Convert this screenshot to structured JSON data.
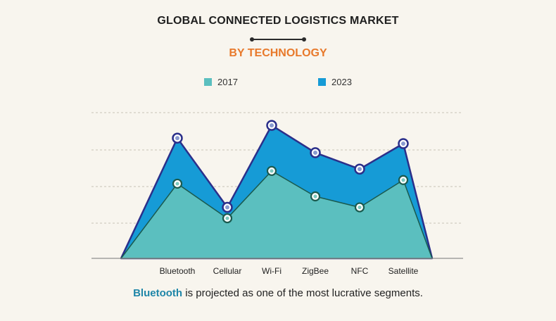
{
  "header": {
    "title": "GLOBAL CONNECTED LOGISTICS MARKET",
    "subtitle": "BY TECHNOLOGY"
  },
  "colors": {
    "subtitle": "#e8792b",
    "series_2017_fill": "#5bbfbf",
    "series_2023_fill": "#169bd6",
    "line_2023": "#2b2f8a",
    "line_2017": "#1a5a4e",
    "grid": "#c9c4b6",
    "highlight": "#1f86a8"
  },
  "chart_data": {
    "type": "area",
    "categories": [
      "Bluetooth",
      "Cellular",
      "Wi-Fi",
      "ZigBee",
      "NFC",
      "Satellite"
    ],
    "series": [
      {
        "name": "2017",
        "values": [
          41,
          22,
          48,
          34,
          28,
          43
        ]
      },
      {
        "name": "2023",
        "values": [
          66,
          28,
          73,
          58,
          49,
          63
        ]
      }
    ],
    "ylim": [
      0,
      80
    ],
    "grid": true,
    "legend": "top-center"
  },
  "footnote": {
    "highlight": "Bluetooth",
    "rest": " is projected as one of the most lucrative segments."
  }
}
